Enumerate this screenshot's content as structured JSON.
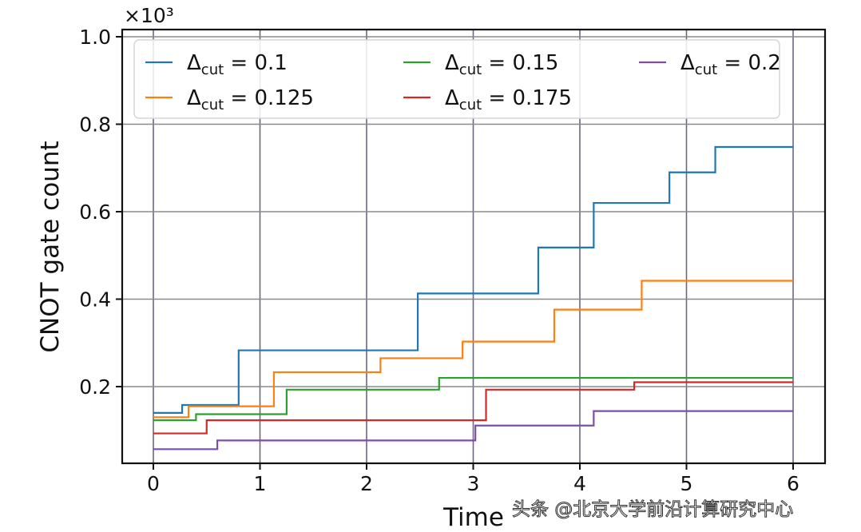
{
  "chart_data": {
    "type": "line",
    "subtype": "step (post)",
    "title": "",
    "xlabel": "Time",
    "ylabel": "CNOT gate count",
    "y_offset_text": "×10³",
    "xlim": [
      -0.3,
      6.3
    ],
    "ylim": [
      0.02,
      1.02
    ],
    "xticks": [
      0,
      1,
      2,
      3,
      4,
      5,
      6
    ],
    "xtick_labels": [
      "0",
      "1",
      "2",
      "3",
      "4",
      "5",
      "6"
    ],
    "yticks": [
      0.2,
      0.4,
      0.6,
      0.8,
      1.0
    ],
    "ytick_labels": [
      "0.2",
      "0.4",
      "0.6",
      "0.8",
      "1.0"
    ],
    "grid": true,
    "legend_position": "upper center, 3 columns",
    "series": [
      {
        "name": "Δcut = 0.1",
        "legend_main": "Δ",
        "legend_sub": "cut",
        "legend_value": "= 0.1",
        "color": "#1f77b4",
        "x": [
          0,
          0.27,
          0.8,
          2.48,
          3.61,
          4.13,
          4.84,
          5.27,
          6
        ],
        "y": [
          0.14,
          0.158,
          0.283,
          0.413,
          0.518,
          0.62,
          0.69,
          0.748,
          0.748
        ]
      },
      {
        "name": "Δcut = 0.125",
        "legend_main": "Δ",
        "legend_sub": "cut",
        "legend_value": "= 0.125",
        "color": "#ff7f0e",
        "x": [
          0,
          0.33,
          1.13,
          2.13,
          2.9,
          3.76,
          4.58,
          6
        ],
        "y": [
          0.13,
          0.155,
          0.233,
          0.265,
          0.303,
          0.376,
          0.442,
          0.442
        ]
      },
      {
        "name": "Δcut = 0.15",
        "legend_main": "Δ",
        "legend_sub": "cut",
        "legend_value": "= 0.15",
        "color": "#2ca02c",
        "x": [
          0,
          0.4,
          1.25,
          2.68,
          6
        ],
        "y": [
          0.123,
          0.137,
          0.193,
          0.22,
          0.22
        ]
      },
      {
        "name": "Δcut = 0.175",
        "legend_main": "Δ",
        "legend_sub": "cut",
        "legend_value": "= 0.175",
        "color": "#d62728",
        "x": [
          0,
          0.5,
          3.12,
          4.51,
          6
        ],
        "y": [
          0.093,
          0.123,
          0.193,
          0.21,
          0.21
        ]
      },
      {
        "name": "Δcut = 0.2",
        "legend_main": "Δ",
        "legend_sub": "cut",
        "legend_value": "= 0.2",
        "color": "#7b4fa6",
        "x": [
          0,
          0.6,
          3.02,
          4.13,
          6
        ],
        "y": [
          0.057,
          0.077,
          0.111,
          0.144,
          0.144
        ]
      }
    ]
  },
  "watermark": "头条 @北京大学前沿计算研究中心"
}
